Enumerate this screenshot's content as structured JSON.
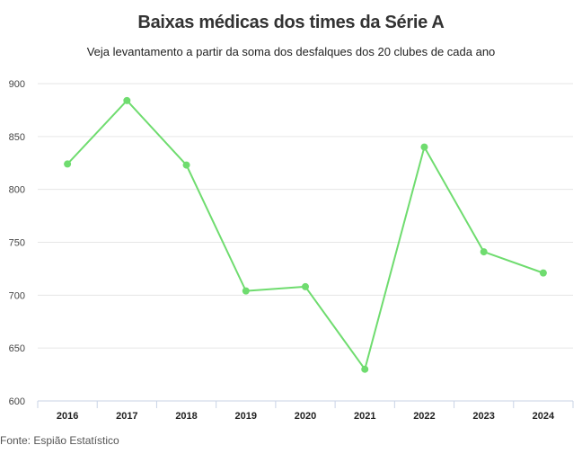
{
  "chart_data": {
    "type": "line",
    "title": "Baixas médicas dos times da Série A",
    "subtitle": "Veja levantamento a partir da soma dos desfalques dos 20 clubes de cada ano",
    "source": "Fonte: Espião Estatístico",
    "categories": [
      "2016",
      "2017",
      "2018",
      "2019",
      "2020",
      "2021",
      "2022",
      "2023",
      "2024"
    ],
    "values": [
      824,
      884,
      823,
      704,
      708,
      630,
      840,
      741,
      721
    ],
    "ylim": [
      600,
      900
    ],
    "yticks": [
      600,
      650,
      700,
      750,
      800,
      850,
      900
    ],
    "grid": true,
    "line_color": "#6fdc6f",
    "grid_color": "#e6e6e6",
    "axis_color": "#c9d3e6"
  }
}
